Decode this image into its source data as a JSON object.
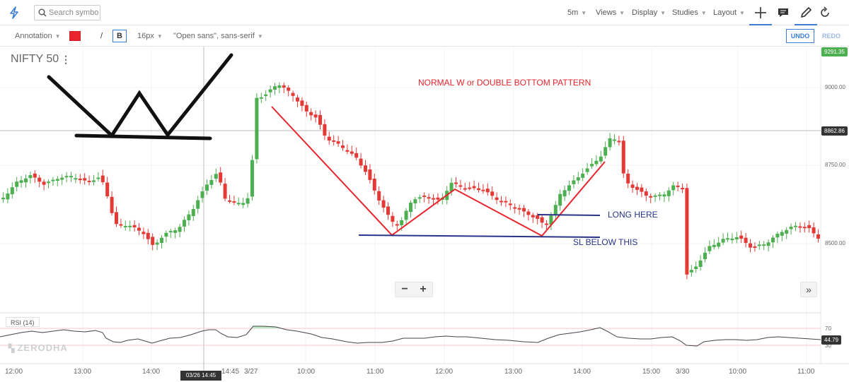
{
  "toolbar": {
    "search_placeholder": "Search symbol",
    "interval": "5m",
    "views": "Views",
    "display": "Display",
    "studies": "Studies",
    "layout": "Layout"
  },
  "annotation_bar": {
    "mode": "Annotation",
    "color": "#e8242c",
    "slash": "/",
    "bold": "B",
    "font_size": "16px",
    "font_family": "\"Open sans\", sans-serif",
    "undo": "UNDO",
    "redo": "REDO"
  },
  "chart": {
    "symbol": "NIFTY 50",
    "menu_glyph": "⋮",
    "watermark": "ZERODHA",
    "price_axis": [
      "9000.00",
      "8750.00",
      "8500.00"
    ],
    "last_price_tag": "9291.35",
    "crosshair_price_tag": "8862.86",
    "time_axis": [
      "12:00",
      "13:00",
      "14:00",
      "14:45",
      "3/27",
      "10:00",
      "11:00",
      "12:00",
      "13:00",
      "14:00",
      "15:00",
      "3/30",
      "10:00",
      "11:00"
    ],
    "crosshair_time": "03/26 14:45",
    "zoom_out": "−",
    "zoom_in": "+",
    "scroll_right": "»"
  },
  "rsi": {
    "label": "RSI (14)",
    "axis": [
      "70",
      "30"
    ],
    "value_tag": "44.79"
  },
  "annotations": {
    "title": "NORMAL W or DOUBLE BOTTOM PATTERN",
    "long": "LONG HERE",
    "sl": "SL BELOW THIS"
  },
  "colors": {
    "accent": "#3b7ed4",
    "up": "#4caf50",
    "down": "#e53935",
    "annotation_red": "#e8242c",
    "annotation_blue": "#28348a"
  }
}
